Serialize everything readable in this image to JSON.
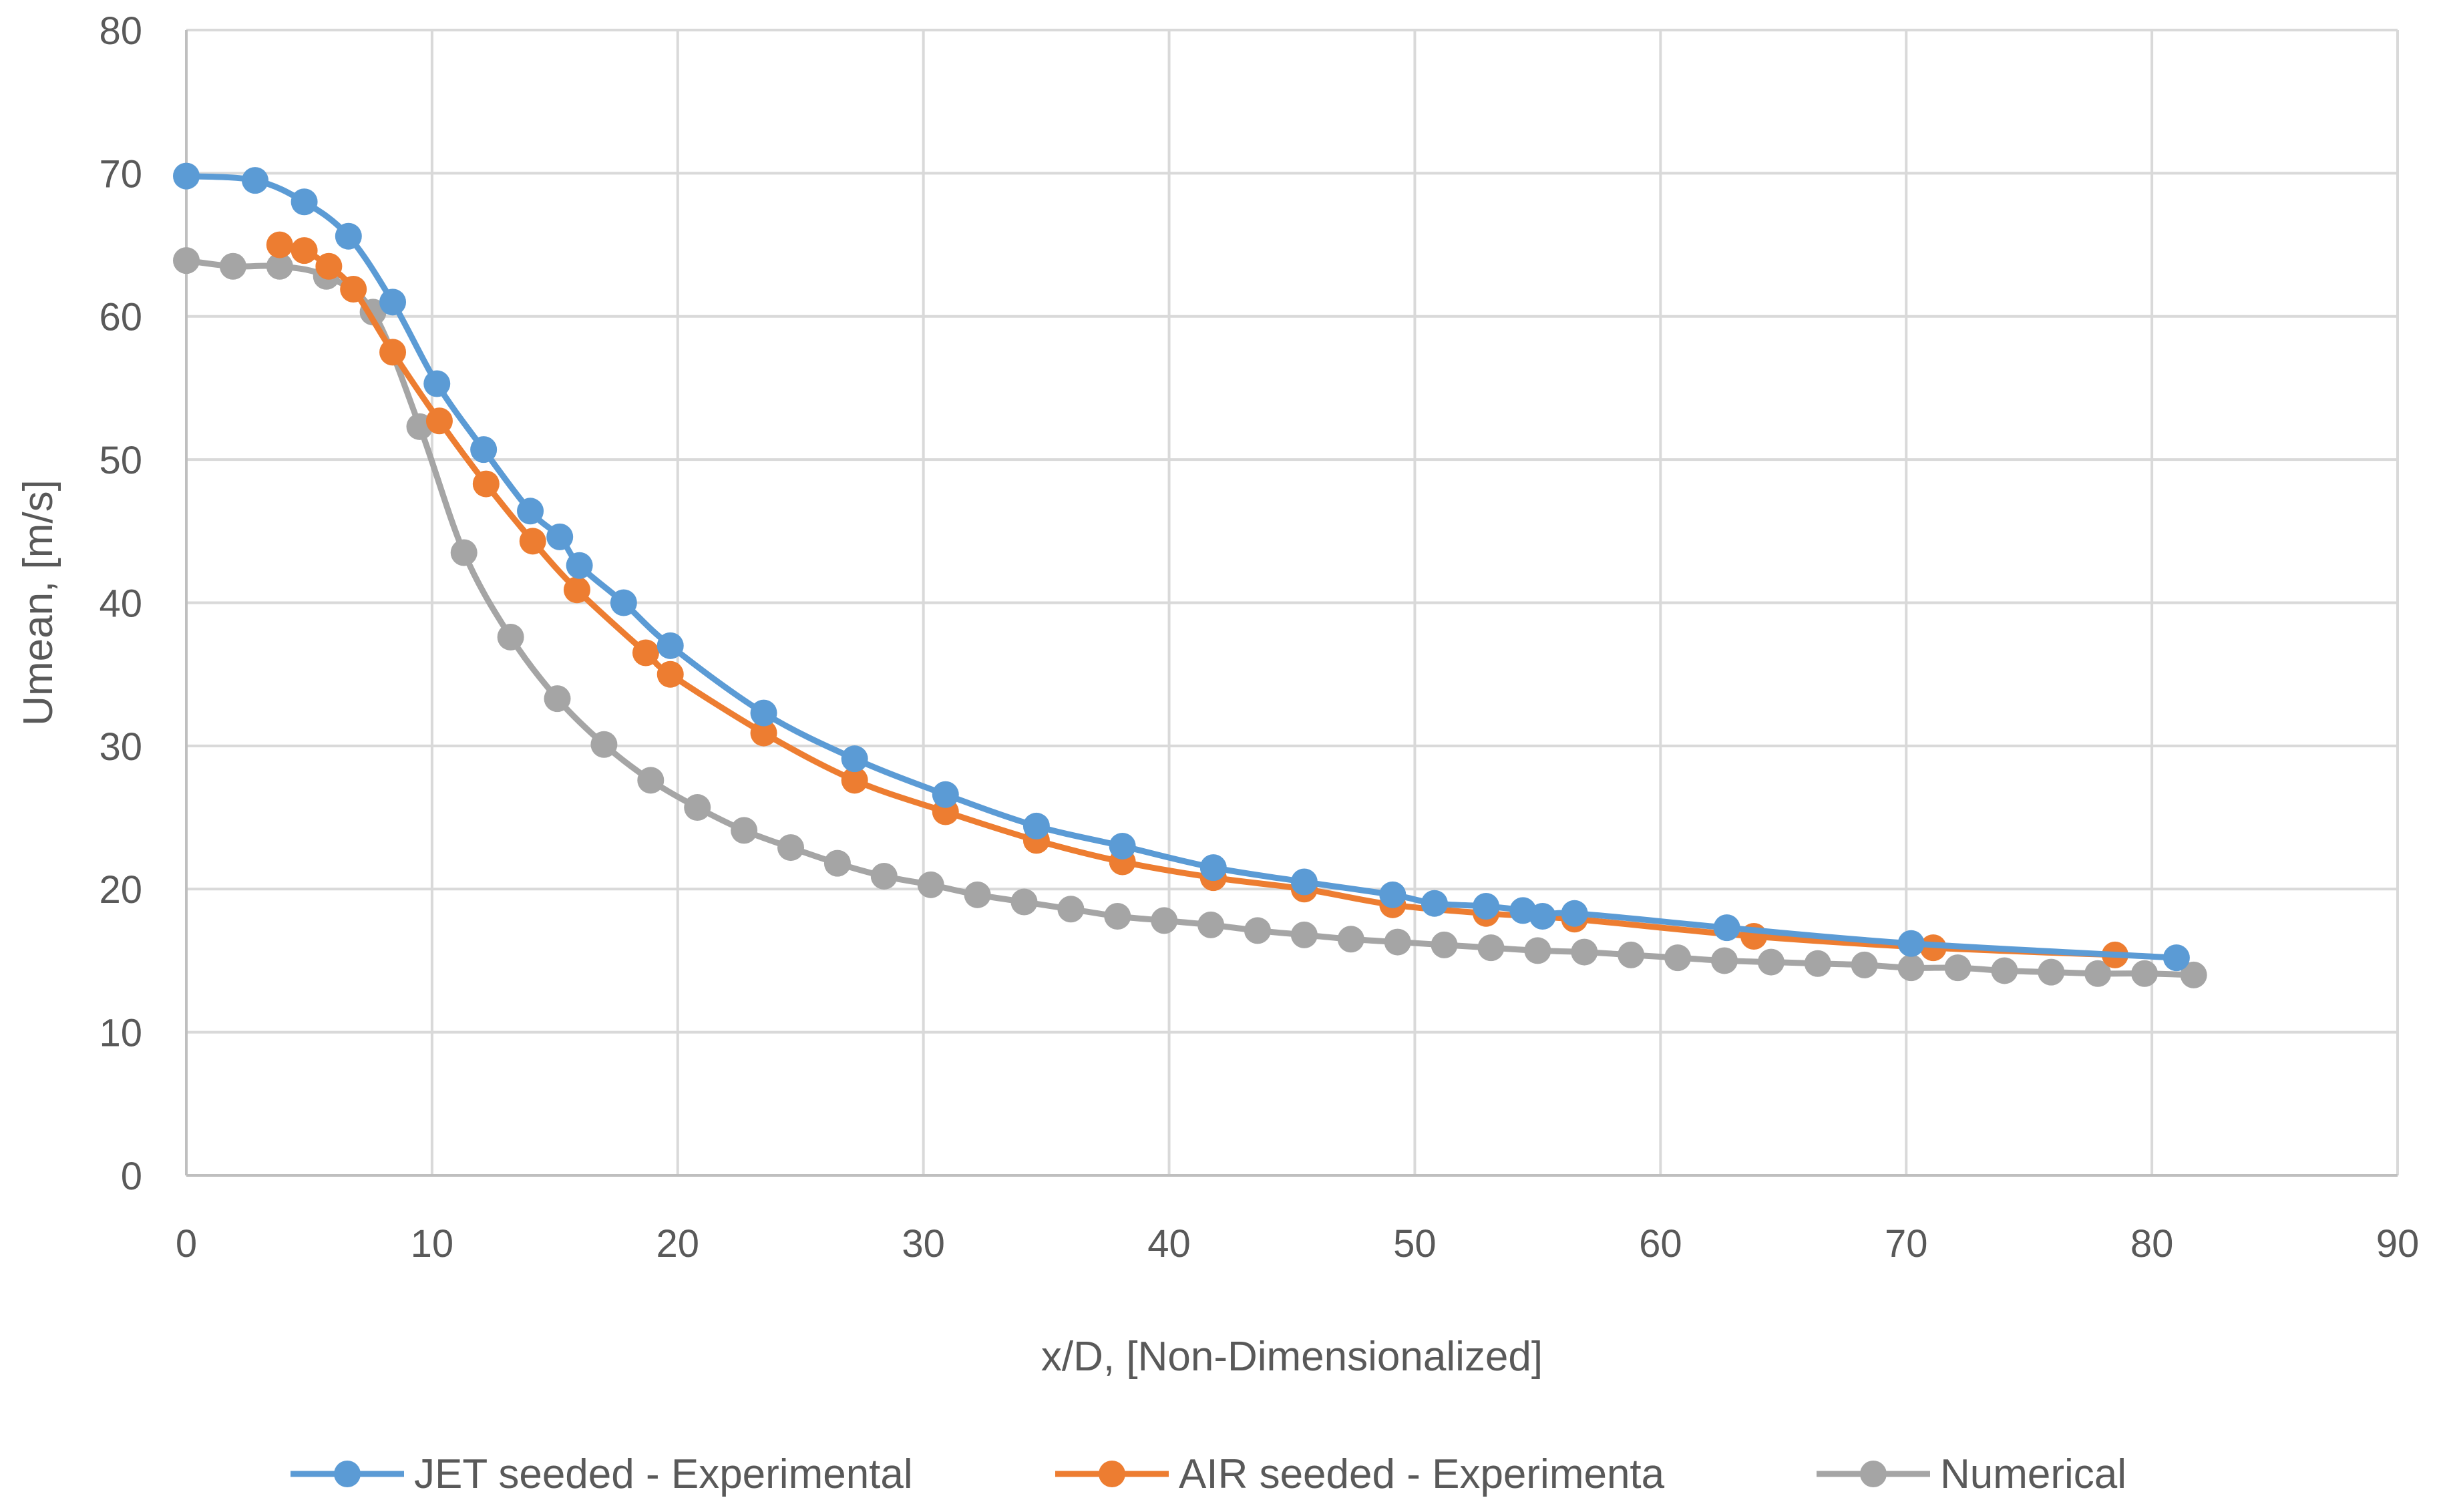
{
  "chart_data": {
    "type": "line",
    "title": "",
    "xlabel": "x/D, [Non-Dimensionalized]",
    "ylabel": "Umean, [m/s]",
    "xlim": [
      0,
      90
    ],
    "ylim": [
      0,
      80
    ],
    "xticks": [
      0,
      10,
      20,
      30,
      40,
      50,
      60,
      70,
      80,
      90
    ],
    "yticks": [
      0,
      10,
      20,
      30,
      40,
      50,
      60,
      70,
      80
    ],
    "grid": true,
    "legend_position": "bottom",
    "series": [
      {
        "name": "JET seeded - Experimental",
        "color": "#5B9BD5",
        "x": [
          0,
          2.8,
          4.8,
          6.6,
          8.4,
          10.2,
          12.1,
          14.0,
          15.2,
          16.0,
          17.8,
          19.7,
          23.5,
          27.2,
          30.9,
          34.6,
          38.1,
          41.8,
          45.5,
          49.1,
          50.8,
          52.9,
          54.4,
          55.2,
          56.5,
          62.7,
          70.2,
          81.0
        ],
        "y": [
          69.8,
          69.5,
          68.0,
          65.6,
          61.0,
          55.3,
          50.7,
          46.4,
          44.6,
          42.6,
          40.0,
          37.0,
          32.3,
          29.1,
          26.6,
          24.4,
          23.0,
          21.5,
          20.5,
          19.6,
          19.0,
          18.8,
          18.5,
          18.1,
          18.3,
          17.3,
          16.2,
          15.2
        ]
      },
      {
        "name": "AIR seeded - Experimenta",
        "color": "#ED7D31",
        "x": [
          3.8,
          4.8,
          5.8,
          6.8,
          8.4,
          10.3,
          12.2,
          14.1,
          15.9,
          18.7,
          19.7,
          23.5,
          27.2,
          30.9,
          34.6,
          38.1,
          41.8,
          45.5,
          49.1,
          52.9,
          56.5,
          63.8,
          71.1,
          78.5
        ],
        "y": [
          65.0,
          64.6,
          63.5,
          61.9,
          57.5,
          52.7,
          48.3,
          44.3,
          40.9,
          36.5,
          35.0,
          30.9,
          27.6,
          25.4,
          23.4,
          21.9,
          20.8,
          20.0,
          18.9,
          18.3,
          17.9,
          16.7,
          15.9,
          15.4
        ]
      },
      {
        "name": "Numerical",
        "color": "#A5A5A5",
        "x": [
          0,
          1.9,
          3.8,
          5.7,
          7.6,
          9.5,
          11.3,
          13.2,
          15.1,
          17.0,
          18.9,
          20.8,
          22.7,
          24.6,
          26.5,
          28.4,
          30.3,
          32.2,
          34.1,
          36.0,
          37.9,
          39.8,
          41.7,
          43.6,
          45.5,
          47.4,
          49.3,
          51.2,
          53.1,
          55.0,
          56.9,
          58.8,
          60.7,
          62.6,
          64.5,
          66.4,
          68.3,
          70.2,
          72.1,
          74.0,
          75.9,
          77.8,
          79.7,
          81.7
        ],
        "y": [
          63.9,
          63.5,
          63.5,
          62.8,
          60.3,
          52.3,
          43.5,
          37.6,
          33.3,
          30.1,
          27.6,
          25.7,
          24.1,
          22.9,
          21.8,
          20.9,
          20.3,
          19.6,
          19.1,
          18.6,
          18.1,
          17.8,
          17.5,
          17.1,
          16.8,
          16.5,
          16.3,
          16.1,
          15.9,
          15.7,
          15.6,
          15.4,
          15.2,
          15.0,
          14.9,
          14.8,
          14.7,
          14.5,
          14.5,
          14.3,
          14.2,
          14.1,
          14.1,
          14.0
        ]
      }
    ]
  }
}
